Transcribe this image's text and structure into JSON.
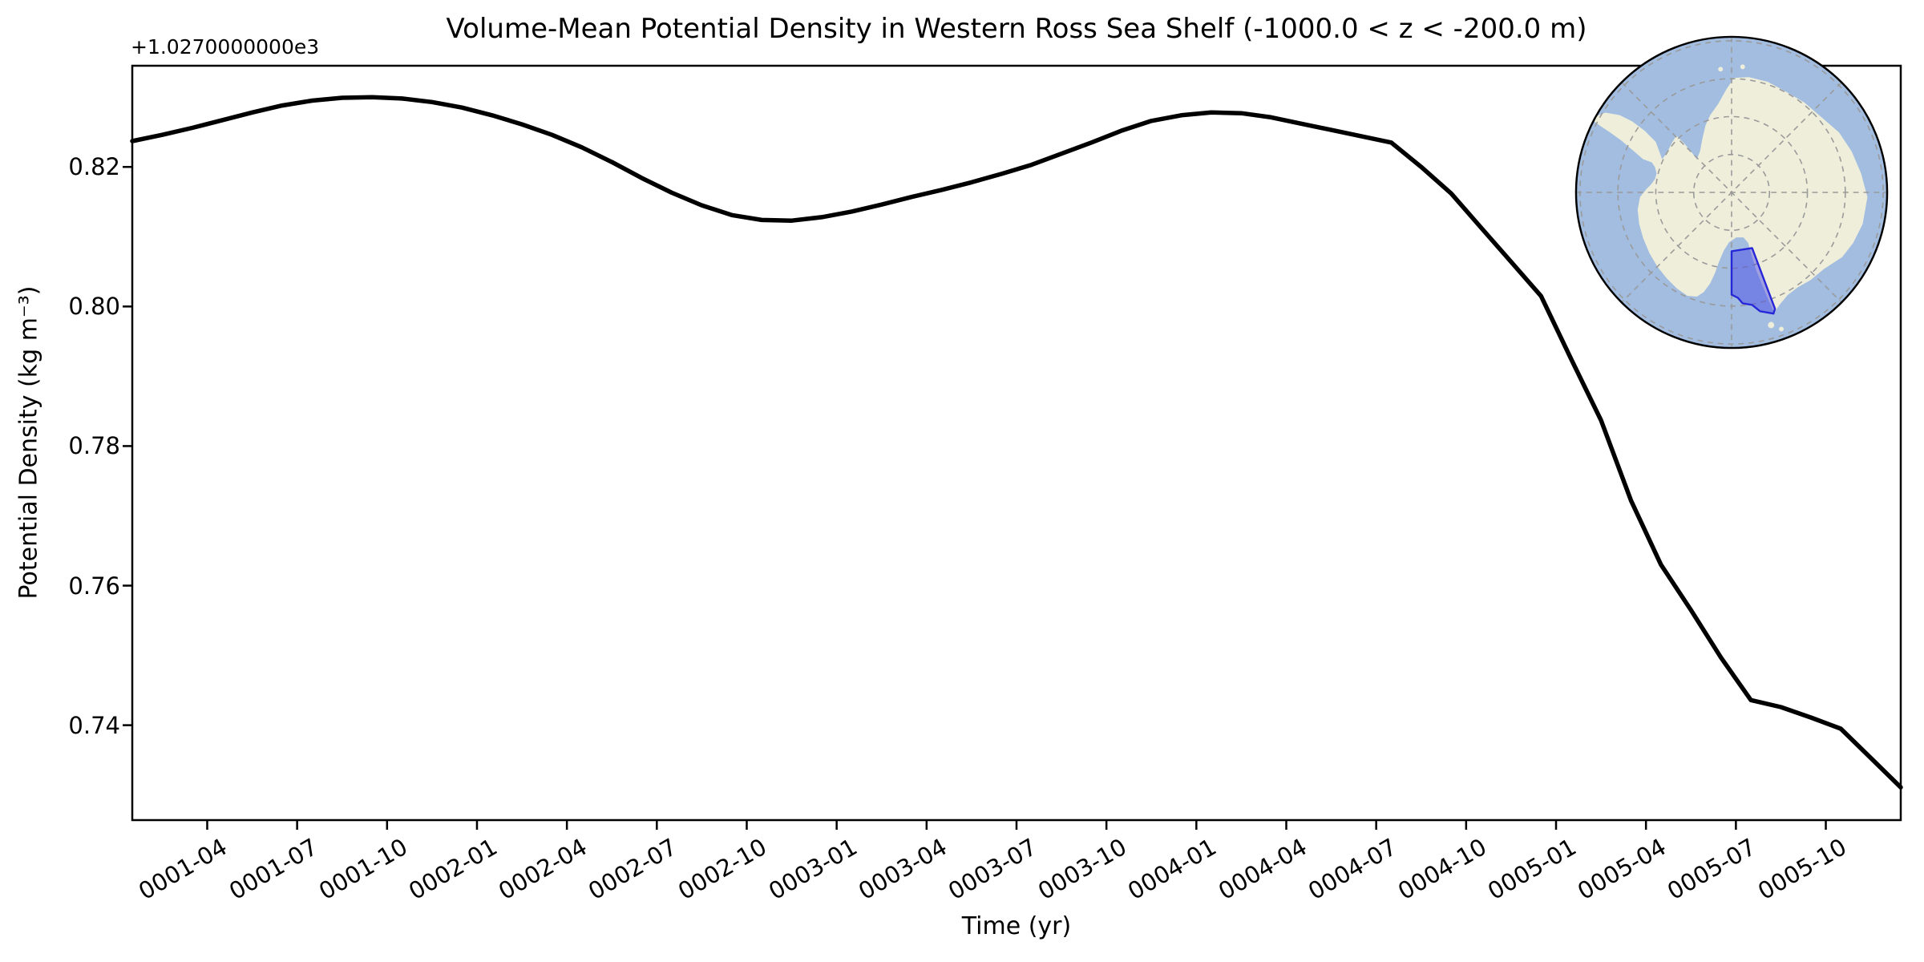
{
  "figure": {
    "title": "Volume-Mean Potential Density in Western Ross Sea Shelf (-1000.0 < z < -200.0 m)",
    "offset_text": "+1.0270000000e3",
    "xlabel": "Time (yr)",
    "ylabel": "Potential Density (kg m⁻³)"
  },
  "chart_data": {
    "type": "line",
    "title": "Volume-Mean Potential Density in Western Ross Sea Shelf (-1000.0 < z < -200.0 m)",
    "xlabel": "Time (yr)",
    "ylabel": "Potential Density (kg m⁻³)",
    "y_offset_text": "+1.0270000000e3",
    "line_color": "#000000",
    "line_width": 5.5,
    "grid": false,
    "ylim": [
      0.7264,
      0.8345
    ],
    "ytick_labels": [
      "0.74",
      "0.76",
      "0.78",
      "0.80",
      "0.82"
    ],
    "ytick_values": [
      0.74,
      0.76,
      0.78,
      0.8,
      0.82
    ],
    "xtick_labels": [
      "0001-04",
      "0001-07",
      "0001-10",
      "0002-01",
      "0002-04",
      "0002-07",
      "0002-10",
      "0003-01",
      "0003-04",
      "0003-07",
      "0003-10",
      "0004-01",
      "0004-04",
      "0004-07",
      "0004-10",
      "0005-01",
      "0005-04",
      "0005-07",
      "0005-10"
    ],
    "x_dates": [
      "0001-01",
      "0001-02",
      "0001-03",
      "0001-04",
      "0001-05",
      "0001-06",
      "0001-07",
      "0001-08",
      "0001-09",
      "0001-10",
      "0001-11",
      "0001-12",
      "0002-01",
      "0002-02",
      "0002-03",
      "0002-04",
      "0002-05",
      "0002-06",
      "0002-07",
      "0002-08",
      "0002-09",
      "0002-10",
      "0002-11",
      "0002-12",
      "0003-01",
      "0003-02",
      "0003-03",
      "0003-04",
      "0003-05",
      "0003-06",
      "0003-07",
      "0003-08",
      "0003-09",
      "0003-10",
      "0003-11",
      "0003-12",
      "0004-01",
      "0004-02",
      "0004-03",
      "0004-04",
      "0004-05",
      "0004-06",
      "0004-07",
      "0004-08",
      "0004-09",
      "0004-10",
      "0004-11",
      "0004-12",
      "0005-01",
      "0005-02",
      "0005-03",
      "0005-04",
      "0005-05",
      "0005-06",
      "0005-07",
      "0005-08",
      "0005-09",
      "0005-10",
      "0005-11",
      "0005-12"
    ],
    "values": [
      0.8237,
      0.8246,
      0.8256,
      0.8267,
      0.8278,
      0.8288,
      0.8295,
      0.8299,
      0.83,
      0.8298,
      0.8293,
      0.8285,
      0.8274,
      0.8261,
      0.8246,
      0.8228,
      0.8207,
      0.8184,
      0.8163,
      0.8145,
      0.8131,
      0.8124,
      0.8123,
      0.8128,
      0.8136,
      0.8146,
      0.8157,
      0.8167,
      0.8178,
      0.819,
      0.8203,
      0.8219,
      0.8235,
      0.8252,
      0.8266,
      0.8274,
      0.8278,
      0.8277,
      0.8271,
      0.8262,
      0.8253,
      0.8244,
      0.8235,
      0.82,
      0.8162,
      0.8113,
      0.8064,
      0.8015,
      0.7925,
      0.7837,
      0.7722,
      0.763,
      0.7565,
      0.7497,
      0.7436,
      0.7426,
      0.7411,
      0.7395,
      0.7353,
      0.7311
    ],
    "inset_map": {
      "region_name": "Western Ross Sea Shelf",
      "ocean_color": "#a2bde0",
      "land_color": "#eeeedb",
      "graticule_color": "#9a9a9a",
      "region_fill": "rgba(64,64,230,0.45)",
      "region_edge": "#2626d8",
      "border_color": "#000000"
    }
  }
}
